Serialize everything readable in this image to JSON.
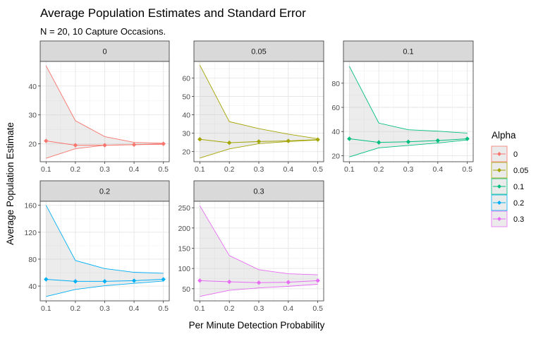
{
  "chart_data": {
    "type": "line",
    "title": "Average Population Estimates and Standard Error",
    "subtitle": "N = 20, 10 Capture Occasions.",
    "xlabel": "Per Minute Detection Probability",
    "ylabel": "Average Population Estimate",
    "legend": {
      "title": "Alpha",
      "placement": "right"
    },
    "x": [
      0.1,
      0.2,
      0.3,
      0.4,
      0.5
    ],
    "x_ticks": [
      "0.1",
      "0.2",
      "0.3",
      "0.4",
      "0.5"
    ],
    "grid": true,
    "panels": [
      {
        "label": "0",
        "color": "#F8766D",
        "estimate": [
          21,
          19.5,
          19.5,
          19.7,
          20
        ],
        "upper": [
          47,
          28,
          22.5,
          20.5,
          20.2
        ],
        "lower": [
          15,
          18.3,
          19.5,
          19.7,
          19.8
        ],
        "ylim": [
          13.8,
          48.5
        ],
        "yticks": [
          "20",
          "30",
          "40"
        ]
      },
      {
        "label": "0.05",
        "color": "#A3A500",
        "estimate": [
          26.7,
          24.8,
          25.5,
          25.8,
          26.5
        ],
        "upper": [
          67,
          36.3,
          32.5,
          29.5,
          27
        ],
        "lower": [
          16.5,
          21.5,
          24.3,
          25.5,
          26.3
        ],
        "ylim": [
          14.5,
          69
        ],
        "yticks": [
          "20",
          "30",
          "40",
          "50",
          "60"
        ]
      },
      {
        "label": "0.1",
        "color": "#00BF7D",
        "estimate": [
          34,
          31,
          31.5,
          32.5,
          34
        ],
        "upper": [
          94,
          47,
          41.5,
          40.3,
          38.7
        ],
        "lower": [
          19,
          26.5,
          28.5,
          30.5,
          33
        ],
        "ylim": [
          15,
          98
        ],
        "yticks": [
          "20",
          "40",
          "60",
          "80"
        ]
      },
      {
        "label": "0.2",
        "color": "#00B0F6",
        "estimate": [
          50,
          47,
          47,
          48,
          50
        ],
        "upper": [
          160,
          78,
          66,
          60.5,
          59
        ],
        "lower": [
          24.5,
          35,
          40.5,
          44,
          47.5
        ],
        "ylim": [
          18,
          166
        ],
        "yticks": [
          "40",
          "80",
          "120",
          "160"
        ]
      },
      {
        "label": "0.3",
        "color": "#E76BF3",
        "estimate": [
          70,
          67,
          65,
          66,
          70
        ],
        "upper": [
          255,
          132,
          97,
          87,
          84.5
        ],
        "lower": [
          31,
          46,
          52,
          56,
          61
        ],
        "ylim": [
          20,
          266
        ],
        "yticks": [
          "50",
          "100",
          "150",
          "200",
          "250"
        ]
      }
    ],
    "legend_entries": [
      "0",
      "0.05",
      "0.1",
      "0.2",
      "0.3"
    ]
  }
}
